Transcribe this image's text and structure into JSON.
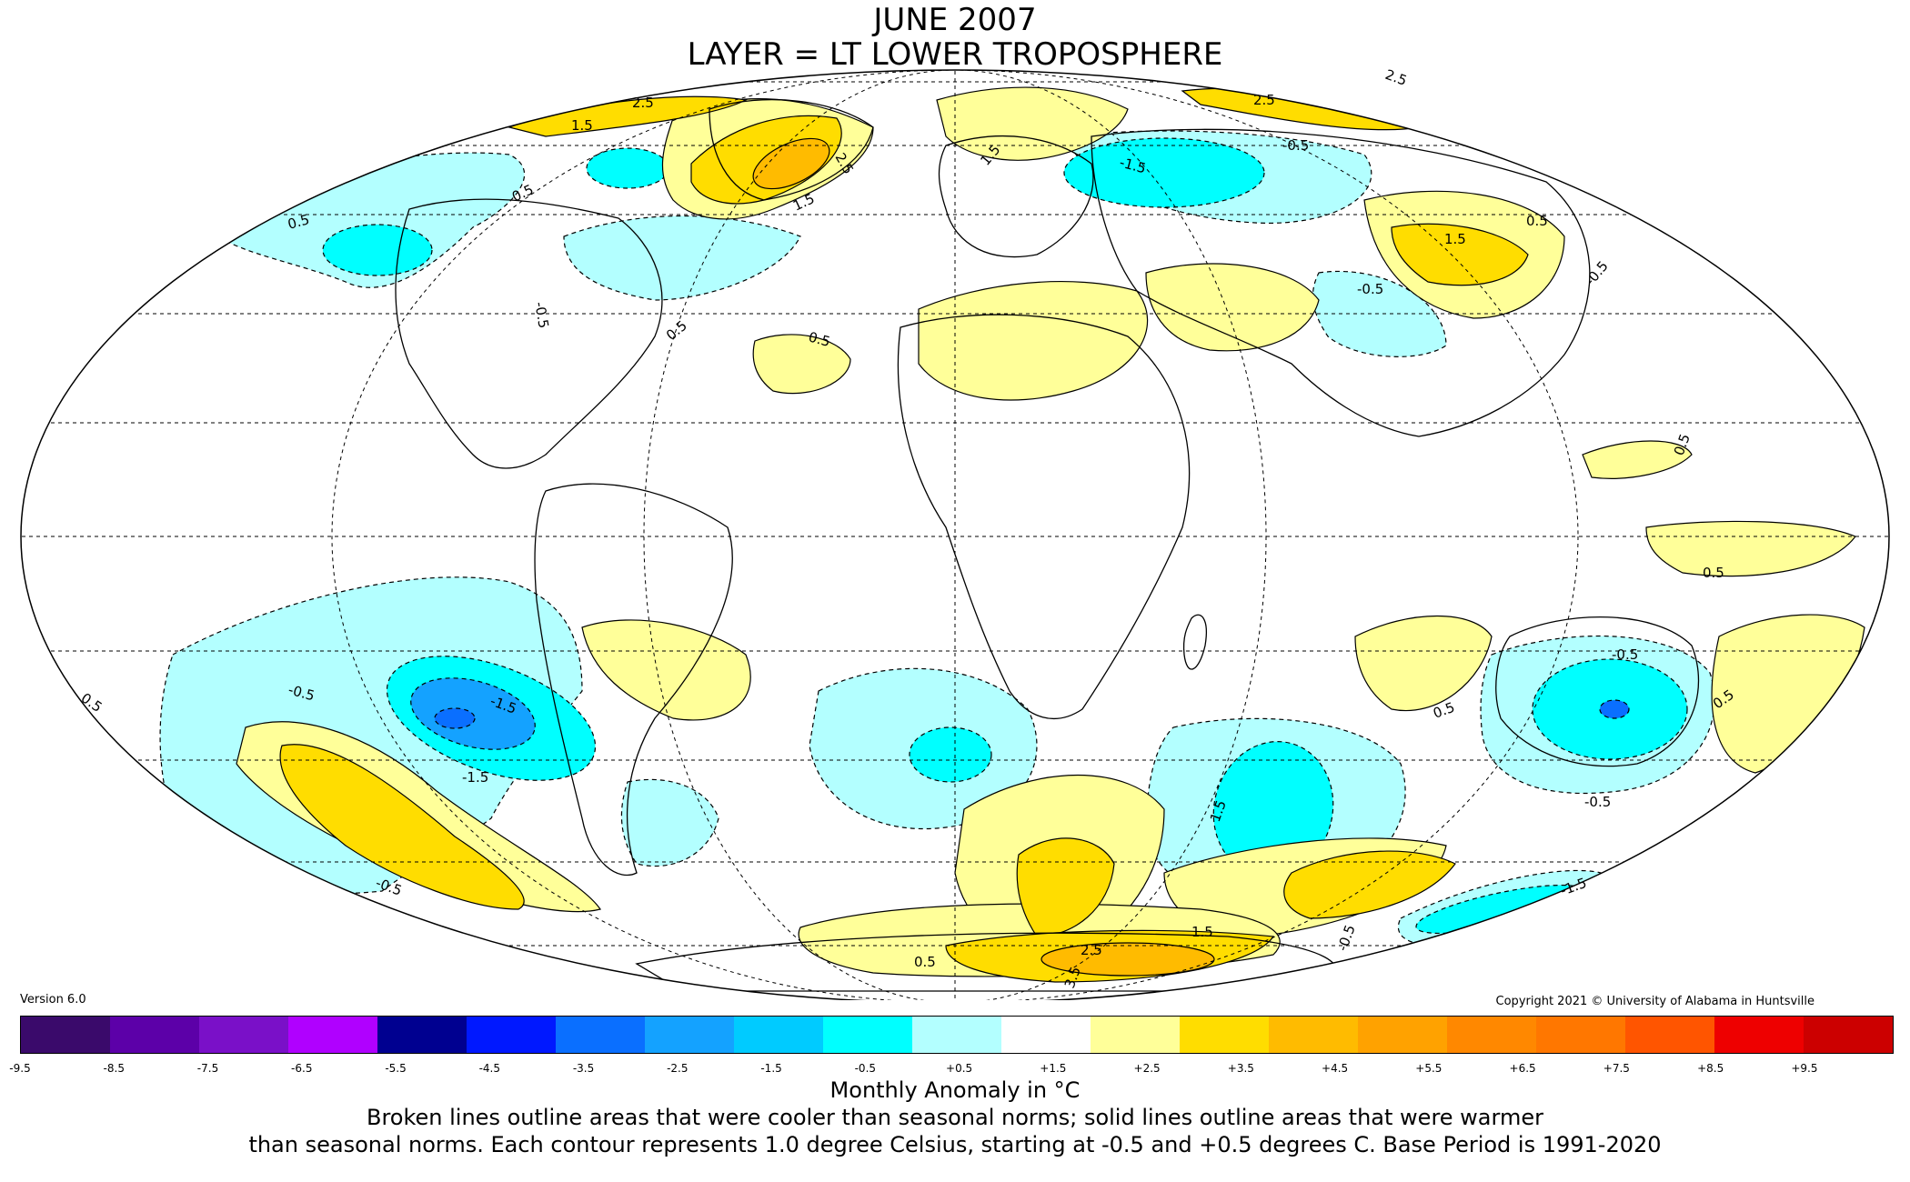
{
  "header": {
    "title": "JUNE 2007",
    "subtitle": "LAYER = LT LOWER TROPOSPHERE"
  },
  "version": "Version 6.0",
  "copyright": "Copyright 2021 © University of Alabama in Huntsville",
  "colorbar": {
    "label": "Monthly Anomaly in °C",
    "ticks": [
      "-9.5",
      "-8.5",
      "-7.5",
      "-6.5",
      "-5.5",
      "-4.5",
      "-3.5",
      "-2.5",
      "-1.5",
      "-0.5",
      "+0.5",
      "+1.5",
      "+2.5",
      "+3.5",
      "+4.5",
      "+5.5",
      "+6.5",
      "+7.5",
      "+8.5",
      "+9.5"
    ],
    "colors": [
      "#3a0a6b",
      "#5c00a8",
      "#7a10c8",
      "#b000ff",
      "#000090",
      "#0018ff",
      "#0a6fff",
      "#14a2ff",
      "#00cbff",
      "#00ffff",
      "#b3ffff",
      "#ffffff",
      "#ffff99",
      "#ffdd00",
      "#ffbb00",
      "#ffa200",
      "#ff8800",
      "#ff7700",
      "#ff5500",
      "#ee0000",
      "#cc0000"
    ]
  },
  "notes": {
    "line1": "Broken lines outline areas that were cooler than seasonal norms; solid lines outline areas that were warmer",
    "line2": "than seasonal norms. Each contour represents 1.0 degree Celsius, starting at -0.5 and +0.5 degrees C. Base Period is 1991-2020"
  },
  "contour_labels": [
    "2.5",
    "1.5",
    "2.5",
    "1.5",
    "2.5",
    "0.5",
    "0.5",
    "-0.5",
    "-1.5",
    "1.5",
    "-0.5",
    "0.5",
    "0.5",
    "-0.5",
    "0.5",
    "2.5",
    "-0.5",
    "1.5",
    "-1.5",
    "-0.5",
    "-1.5",
    "-0.5",
    "2.5",
    "3.5",
    "-0.5",
    "0.5",
    "1.5",
    "-1.5",
    "1.5",
    "0.5",
    "0.5",
    "0.5",
    "0.5",
    "0.5",
    "-0.5",
    "-0.5"
  ]
}
